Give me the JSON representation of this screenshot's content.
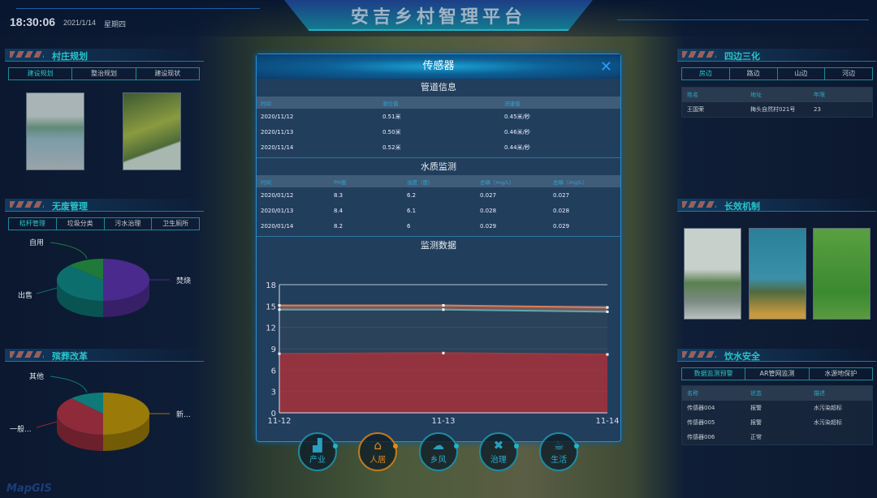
{
  "header": {
    "title": "安吉乡村智理平台",
    "time": "18:30:06",
    "date": "2021/1/14",
    "weekday": "星期四"
  },
  "left": {
    "village_planning": {
      "title": "村庄规划",
      "tabs": [
        "建设规划",
        "整治规划",
        "建设现状"
      ],
      "active_tab": 0
    },
    "zero_waste": {
      "title": "无废管理",
      "tabs": [
        "秸秆管理",
        "垃圾分类",
        "污水治理",
        "卫生厕所"
      ],
      "active_tab": 0,
      "pie": {
        "slices": [
          {
            "label": "焚烧",
            "share": 0.5,
            "color": "#4a2a8c"
          },
          {
            "label": "出售",
            "share": 0.37,
            "color": "#0d6e6e"
          },
          {
            "label": "自用",
            "share": 0.13,
            "color": "#1f7a3a"
          }
        ]
      }
    },
    "funeral_reform": {
      "title": "殡葬改革",
      "pie": {
        "slices": [
          {
            "label": "新...",
            "share": 0.5,
            "color": "#9a7a08"
          },
          {
            "label": "一般...",
            "share": 0.38,
            "color": "#8e2a3a"
          },
          {
            "label": "其他",
            "share": 0.12,
            "color": "#0f7a7a"
          }
        ]
      }
    }
  },
  "right": {
    "four_sides": {
      "title": "四边三化",
      "tabs": [
        "房边",
        "路边",
        "山边",
        "河边"
      ],
      "active_tab": 0,
      "columns": [
        "姓名",
        "地址",
        "年限"
      ],
      "rows": [
        [
          "王国荣",
          "梅头自然村021号",
          "23"
        ]
      ]
    },
    "long_term": {
      "title": "长效机制"
    },
    "water_safety": {
      "title": "饮水安全",
      "tabs": [
        "数据监测预警",
        "AR管网监测",
        "水源地保护"
      ],
      "active_tab": 0,
      "columns": [
        "名称",
        "状态",
        "描述"
      ],
      "rows": [
        [
          "传感器004",
          "报警",
          "水污染超标"
        ],
        [
          "传感器005",
          "报警",
          "水污染超标"
        ],
        [
          "传感器006",
          "正常",
          ""
        ]
      ]
    }
  },
  "modal": {
    "title": "传感器",
    "close": "✕",
    "pipe": {
      "title": "管道信息",
      "columns": [
        "时间",
        "液位值",
        "流速值"
      ],
      "rows": [
        [
          "2020/11/12",
          "0.51米",
          "0.45米/秒"
        ],
        [
          "2020/11/13",
          "0.50米",
          "0.46米/秒"
        ],
        [
          "2020/11/14",
          "0.52米",
          "0.44米/秒"
        ]
      ]
    },
    "water": {
      "title": "水质监测",
      "columns": [
        "时间",
        "PH值",
        "浊度（度）",
        "总磷（mg/L）",
        "总磷（mg/L）"
      ],
      "rows": [
        [
          "2020/01/12",
          "8.3",
          "6.2",
          "0.027",
          "0.027"
        ],
        [
          "2020/01/13",
          "8.4",
          "6.1",
          "0.028",
          "0.028"
        ],
        [
          "2020/01/14",
          "8.2",
          "6",
          "0.029",
          "0.029"
        ]
      ]
    },
    "monitor_title": "监测数据"
  },
  "chart_data": {
    "type": "area",
    "categories": [
      "11-12",
      "11-13",
      "11-14"
    ],
    "ylim": [
      0,
      18
    ],
    "yticks": [
      0,
      3,
      6,
      9,
      12,
      15,
      18
    ],
    "grid": true,
    "series": [
      {
        "values": [
          8.3,
          8.4,
          8.2
        ],
        "color": "#9a3a40"
      },
      {
        "values": [
          14.5,
          14.5,
          14.2
        ],
        "color": "#5aaab0"
      },
      {
        "values": [
          15.1,
          15.1,
          14.8
        ],
        "color": "#d8805a"
      }
    ]
  },
  "bottom_nav": [
    {
      "label": "产业",
      "icon": "factory-icon",
      "glyph": "▟"
    },
    {
      "label": "人居",
      "icon": "house-icon",
      "glyph": "⌂",
      "active": true
    },
    {
      "label": "乡风",
      "icon": "landscape-icon",
      "glyph": "☁"
    },
    {
      "label": "治理",
      "icon": "tools-icon",
      "glyph": "✖"
    },
    {
      "label": "生活",
      "icon": "coffee-cup-icon",
      "glyph": "☕"
    }
  ],
  "logo": "MapGIS"
}
